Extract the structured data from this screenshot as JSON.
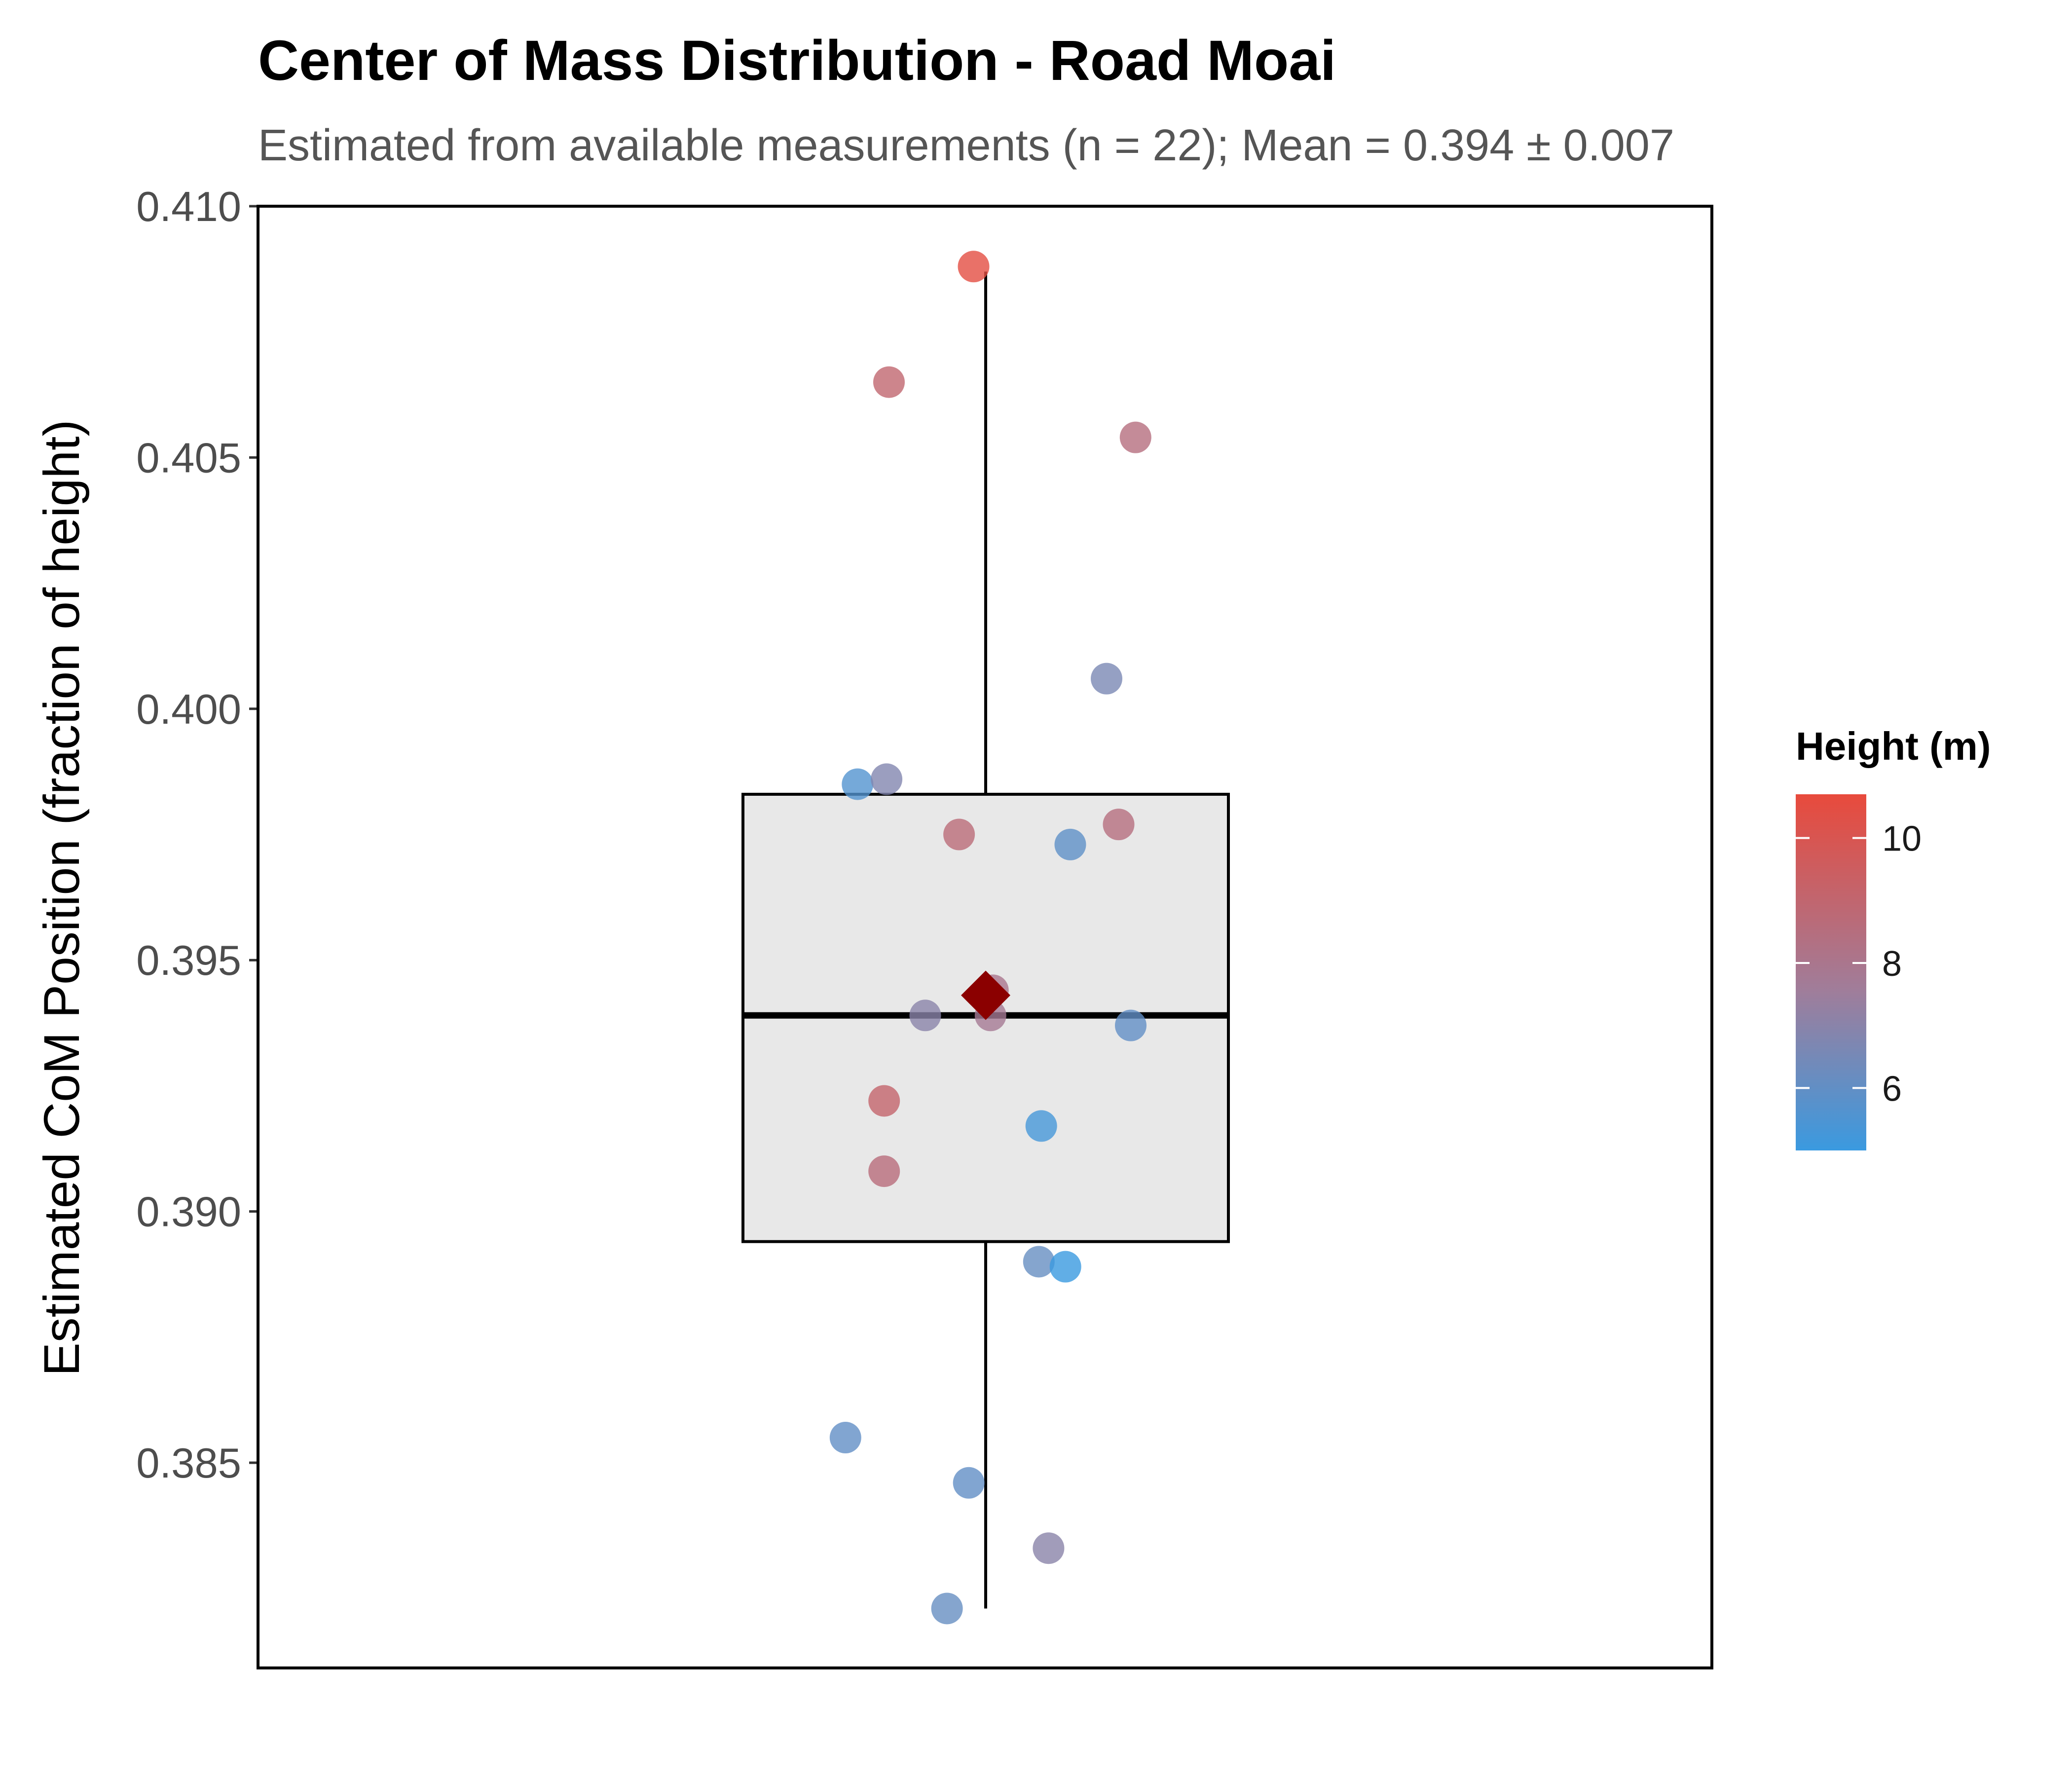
{
  "chart_data": {
    "type": "scatter",
    "title": "Center of Mass Distribution - Road Moai",
    "subtitle": "Estimated from available measurements (n = 22); Mean = 0.394 ± 0.007",
    "xlabel": "",
    "ylabel": "Estimated CoM Position (fraction of height)",
    "ylim": [
      0.381,
      0.41
    ],
    "yticks": [
      "0.410",
      "0.405",
      "0.400",
      "0.395",
      "0.390",
      "0.385"
    ],
    "grid": false,
    "boxplot": {
      "q1": 0.3894,
      "median": 0.3939,
      "q3": 0.3983,
      "whisker_low": 0.3821,
      "whisker_high": 0.4087,
      "mean": 0.3943,
      "fill": "#e8e8e8",
      "mean_marker_color": "#8b0000"
    },
    "points": [
      {
        "jitter": -0.05,
        "y": 0.4088,
        "height": 10.5
      },
      {
        "jitter": -0.4,
        "y": 0.4065,
        "height": 9.0
      },
      {
        "jitter": 0.62,
        "y": 0.4054,
        "height": 8.5
      },
      {
        "jitter": 0.5,
        "y": 0.4006,
        "height": 6.6
      },
      {
        "jitter": -0.53,
        "y": 0.3985,
        "height": 5.6
      },
      {
        "jitter": -0.41,
        "y": 0.3986,
        "height": 6.8
      },
      {
        "jitter": -0.11,
        "y": 0.3975,
        "height": 8.7
      },
      {
        "jitter": 0.35,
        "y": 0.3973,
        "height": 5.9
      },
      {
        "jitter": 0.55,
        "y": 0.3977,
        "height": 8.5
      },
      {
        "jitter": 0.03,
        "y": 0.3944,
        "height": 8.0
      },
      {
        "jitter": 0.02,
        "y": 0.3939,
        "height": 7.8
      },
      {
        "jitter": -0.25,
        "y": 0.3939,
        "height": 7.0
      },
      {
        "jitter": 0.6,
        "y": 0.3937,
        "height": 6.0
      },
      {
        "jitter": -0.42,
        "y": 0.3922,
        "height": 9.1
      },
      {
        "jitter": 0.23,
        "y": 0.3917,
        "height": 5.3
      },
      {
        "jitter": -0.42,
        "y": 0.3908,
        "height": 8.6
      },
      {
        "jitter": 0.22,
        "y": 0.389,
        "height": 6.1
      },
      {
        "jitter": 0.33,
        "y": 0.3889,
        "height": 5.0
      },
      {
        "jitter": -0.58,
        "y": 0.3855,
        "height": 6.0
      },
      {
        "jitter": -0.07,
        "y": 0.3846,
        "height": 6.0
      },
      {
        "jitter": 0.26,
        "y": 0.3833,
        "height": 7.0
      },
      {
        "jitter": -0.16,
        "y": 0.3821,
        "height": 6.1
      }
    ],
    "legend": {
      "title": "Height (m)",
      "placement": "right",
      "range": [
        5.0,
        10.7
      ],
      "ticks": [
        {
          "value": 10,
          "label": "10"
        },
        {
          "value": 8,
          "label": "8"
        },
        {
          "value": 6,
          "label": "6"
        }
      ],
      "color_low": "#3a9ae0",
      "color_high": "#e84a3c"
    }
  }
}
